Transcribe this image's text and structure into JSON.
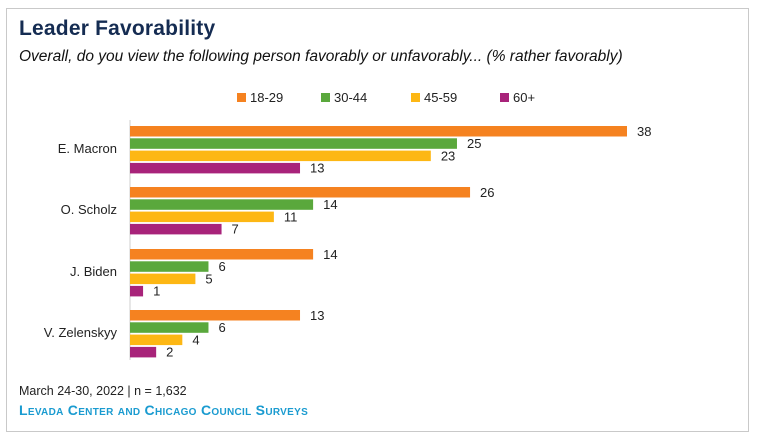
{
  "header": {
    "title": "Leader Favorability",
    "subtitle": "Overall, do you view the following person favorably or unfavorably... (% rather favorably)"
  },
  "footer": {
    "note": "March 24-30, 2022 | n = 1,632",
    "source": "Levada Center and Chicago Council Surveys"
  },
  "chart_data": {
    "type": "bar",
    "orientation": "horizontal",
    "categories": [
      "E. Macron",
      "O. Scholz",
      "J. Biden",
      "V. Zelenskyy"
    ],
    "series": [
      {
        "name": "18-29",
        "color": "#f58220",
        "values": [
          38,
          26,
          14,
          13
        ]
      },
      {
        "name": "30-44",
        "color": "#5aa83c",
        "values": [
          25,
          14,
          6,
          6
        ]
      },
      {
        "name": "45-59",
        "color": "#fdb714",
        "values": [
          23,
          11,
          5,
          4
        ]
      },
      {
        "name": "60+",
        "color": "#a8237a",
        "values": [
          13,
          7,
          1,
          2
        ]
      }
    ],
    "xlim": [
      0,
      40
    ],
    "legend": "top-center",
    "grid": false,
    "data_labels": true
  }
}
